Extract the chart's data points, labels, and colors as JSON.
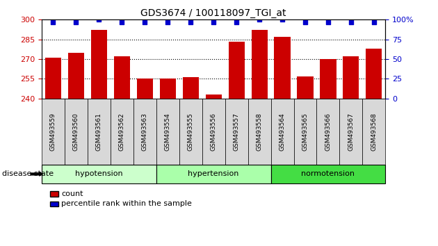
{
  "title": "GDS3674 / 100118097_TGI_at",
  "samples": [
    "GSM493559",
    "GSM493560",
    "GSM493561",
    "GSM493562",
    "GSM493563",
    "GSM493554",
    "GSM493555",
    "GSM493556",
    "GSM493557",
    "GSM493558",
    "GSM493564",
    "GSM493565",
    "GSM493566",
    "GSM493567",
    "GSM493568"
  ],
  "bar_values": [
    271,
    275,
    292,
    272,
    255,
    255,
    256,
    243,
    283,
    292,
    287,
    257,
    270,
    272,
    278
  ],
  "percentile_values": [
    97,
    97,
    100,
    97,
    97,
    97,
    97,
    97,
    97,
    100,
    100,
    97,
    97,
    97,
    97
  ],
  "bar_color": "#cc0000",
  "percentile_color": "#0000cc",
  "ymin": 240,
  "ymax": 300,
  "yticks": [
    240,
    255,
    270,
    285,
    300
  ],
  "y2min": 0,
  "y2max": 100,
  "y2ticks": [
    0,
    25,
    50,
    75,
    100
  ],
  "y2tick_labels": [
    "0",
    "25",
    "50",
    "75",
    "100%"
  ],
  "groups": [
    {
      "label": "hypotension",
      "start": 0,
      "end": 5
    },
    {
      "label": "hypertension",
      "start": 5,
      "end": 10
    },
    {
      "label": "normotension",
      "start": 10,
      "end": 15
    }
  ],
  "group_colors": [
    "#ccffcc",
    "#aaffaa",
    "#44dd44"
  ],
  "disease_state_label": "disease state",
  "legend_count_label": "count",
  "legend_percentile_label": "percentile rank within the sample",
  "tick_color_left": "#cc0000",
  "tick_color_right": "#0000cc",
  "dotted_lines": [
    255,
    270,
    285
  ],
  "bar_bottom": 240,
  "sample_box_color": "#d8d8d8",
  "bar_width": 0.7
}
